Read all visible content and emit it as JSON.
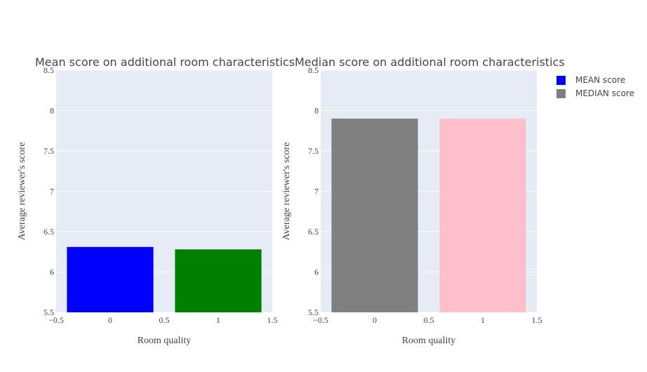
{
  "chart_data": [
    {
      "type": "bar",
      "title": "Mean score on additional room characteristics",
      "xlabel": "Room quality",
      "ylabel": "Average reviewer's score",
      "xlim": [
        -0.5,
        1.5
      ],
      "ylim": [
        5.5,
        8.5
      ],
      "xticks": [
        "−0.5",
        "0",
        "0.5",
        "1",
        "1.5"
      ],
      "yticks": [
        "5.5",
        "6",
        "6.5",
        "7",
        "7.5",
        "8",
        "8.5"
      ],
      "grid": true,
      "bars": [
        {
          "x": 0,
          "value": 6.31,
          "color": "#0000ff"
        },
        {
          "x": 1,
          "value": 6.28,
          "color": "#008000"
        }
      ],
      "legend_series": "MEAN score"
    },
    {
      "type": "bar",
      "title": "Median score on additional room characteristics",
      "xlabel": "Room quality",
      "ylabel": "Average reviewer's score",
      "xlim": [
        -0.5,
        1.5
      ],
      "ylim": [
        5.5,
        8.5
      ],
      "xticks": [
        "−0.5",
        "0",
        "0.5",
        "1",
        "1.5"
      ],
      "yticks": [
        "5.5",
        "6",
        "6.5",
        "7",
        "7.5",
        "8",
        "8.5"
      ],
      "grid": true,
      "bars": [
        {
          "x": 0,
          "value": 7.9,
          "color": "#808080"
        },
        {
          "x": 1,
          "value": 7.9,
          "color": "#ffc0cb"
        }
      ],
      "legend_series": "MEDIAN score"
    }
  ],
  "legend": {
    "placement": "top-right",
    "items": [
      {
        "label": "MEAN score",
        "color": "#0000ff"
      },
      {
        "label": "MEDIAN score",
        "color": "#808080"
      }
    ]
  },
  "colors": {
    "plot_bg": "#e5ecf6",
    "grid": "#ffffff",
    "text": "#444444"
  }
}
